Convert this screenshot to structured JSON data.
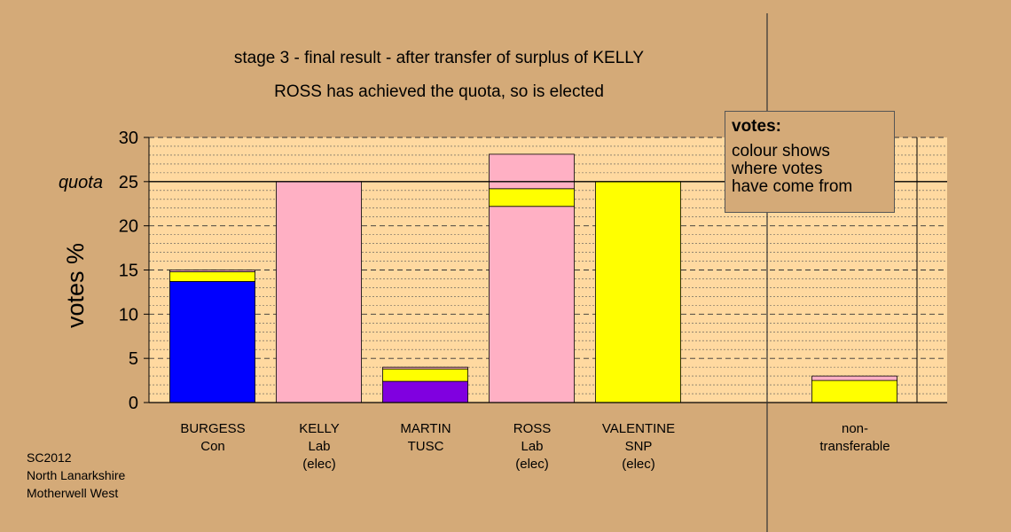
{
  "chart_data": {
    "type": "bar",
    "stacked": true,
    "title": "stage 3 - final result - after transfer of surplus of KELLY",
    "subtitle": "ROSS has achieved the quota, so is elected",
    "ylabel": "votes %",
    "ylim": [
      0,
      30
    ],
    "yticks": [
      0,
      5,
      10,
      15,
      20,
      25,
      30
    ],
    "quota": {
      "label": "quota",
      "value": 25
    },
    "grid": true,
    "categories": [
      {
        "name": "BURGESS",
        "party": "Con",
        "status": ""
      },
      {
        "name": "KELLY",
        "party": "Lab",
        "status": "(elec)"
      },
      {
        "name": "MARTIN",
        "party": "TUSC",
        "status": ""
      },
      {
        "name": "ROSS",
        "party": "Lab",
        "status": "(elec)"
      },
      {
        "name": "VALENTINE",
        "party": "SNP",
        "status": "(elec)"
      },
      {
        "name": "",
        "party": "",
        "status": ""
      },
      {
        "name": "non-",
        "party": "transferable",
        "status": ""
      }
    ],
    "bars": [
      {
        "segments": [
          {
            "value": 13.7,
            "color": "#0000FF"
          },
          {
            "value": 1.1,
            "color": "#FFFF00"
          },
          {
            "value": 0.2,
            "color": "#FFB0C4"
          }
        ]
      },
      {
        "segments": [
          {
            "value": 25.0,
            "color": "#FFB0C4"
          }
        ]
      },
      {
        "segments": [
          {
            "value": 2.4,
            "color": "#8000E0"
          },
          {
            "value": 1.4,
            "color": "#FFFF00"
          },
          {
            "value": 0.2,
            "color": "#FFB0C4"
          }
        ]
      },
      {
        "segments": [
          {
            "value": 22.2,
            "color": "#FFB0C4"
          },
          {
            "value": 2.0,
            "color": "#FFFF00"
          },
          {
            "value": 3.9,
            "color": "#FFB0C4"
          }
        ]
      },
      {
        "segments": [
          {
            "value": 25.0,
            "color": "#FFFF00"
          }
        ]
      },
      {
        "segments": []
      },
      {
        "segments": [
          {
            "value": 2.5,
            "color": "#FFFF00"
          },
          {
            "value": 0.5,
            "color": "#FFB0C4"
          }
        ]
      }
    ]
  },
  "legend": {
    "title": "votes:",
    "lines": [
      "colour shows",
      "where votes",
      "have come from"
    ]
  },
  "footer": [
    "SC2012",
    "North Lanarkshire",
    "Motherwell West"
  ],
  "colors": {
    "background": "#D4AA78",
    "plot_area": "#FFD9A0"
  }
}
